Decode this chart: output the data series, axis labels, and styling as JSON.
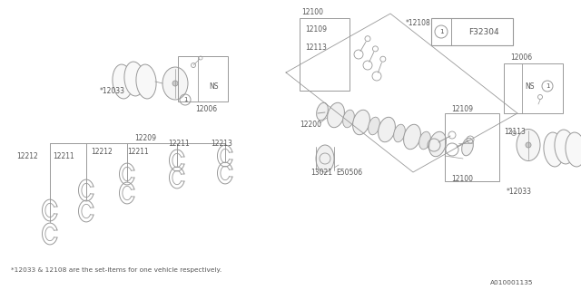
{
  "bg_color": "#ffffff",
  "lc": "#999999",
  "tc": "#555555",
  "fs": 5.5,
  "title_label": "F32304",
  "doc_number": "A010001135",
  "footnote": "*12033 & 12108 are the set-items for one vehicle respectively."
}
